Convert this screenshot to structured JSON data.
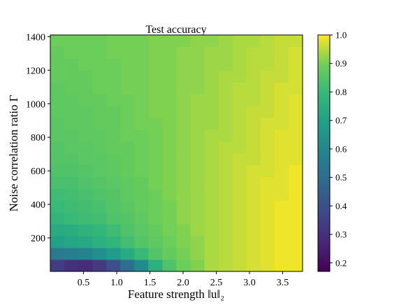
{
  "chart_data": {
    "type": "heatmap",
    "title": "Test accuracy",
    "xlabel": "Feature strength ‖u‖₂",
    "ylabel": "Noise correlation ratio Γ",
    "xlim": [
      0,
      3.8
    ],
    "ylim": [
      0,
      1410
    ],
    "xticks": [
      "0.5",
      "1.0",
      "1.5",
      "2.0",
      "2.5",
      "3.0",
      "3.5"
    ],
    "yticks": [
      "200",
      "400",
      "600",
      "800",
      "1000",
      "1200",
      "1400"
    ],
    "colorbar": {
      "colormap": "viridis",
      "range": [
        0.17,
        1.0
      ],
      "ticks": [
        "0.2",
        "0.3",
        "0.4",
        "0.5",
        "0.6",
        "0.7",
        "0.8",
        "0.9",
        "1.0"
      ]
    },
    "grid": false,
    "columns": 18,
    "rows": 20,
    "values": [
      [
        0.34,
        0.3,
        0.29,
        0.33,
        0.4,
        0.5,
        0.62,
        0.76,
        0.84,
        0.89,
        0.91,
        0.94,
        0.95,
        0.96,
        0.97,
        0.98,
        0.99,
        0.99
      ],
      [
        0.55,
        0.57,
        0.59,
        0.63,
        0.68,
        0.74,
        0.8,
        0.85,
        0.88,
        0.9,
        0.92,
        0.94,
        0.95,
        0.96,
        0.97,
        0.98,
        0.99,
        0.99
      ],
      [
        0.7,
        0.72,
        0.73,
        0.76,
        0.78,
        0.82,
        0.85,
        0.87,
        0.89,
        0.91,
        0.92,
        0.94,
        0.95,
        0.96,
        0.97,
        0.98,
        0.99,
        0.99
      ],
      [
        0.74,
        0.75,
        0.77,
        0.79,
        0.81,
        0.84,
        0.86,
        0.88,
        0.9,
        0.91,
        0.93,
        0.94,
        0.95,
        0.96,
        0.97,
        0.98,
        0.99,
        0.99
      ],
      [
        0.78,
        0.8,
        0.81,
        0.82,
        0.84,
        0.85,
        0.87,
        0.89,
        0.9,
        0.92,
        0.93,
        0.94,
        0.95,
        0.96,
        0.97,
        0.98,
        0.99,
        0.99
      ],
      [
        0.8,
        0.81,
        0.82,
        0.83,
        0.85,
        0.86,
        0.88,
        0.89,
        0.9,
        0.92,
        0.93,
        0.94,
        0.95,
        0.96,
        0.97,
        0.98,
        0.99,
        0.99
      ],
      [
        0.81,
        0.82,
        0.83,
        0.84,
        0.85,
        0.87,
        0.88,
        0.89,
        0.91,
        0.92,
        0.93,
        0.94,
        0.95,
        0.96,
        0.97,
        0.98,
        0.98,
        0.99
      ],
      [
        0.83,
        0.83,
        0.84,
        0.85,
        0.86,
        0.87,
        0.88,
        0.9,
        0.91,
        0.92,
        0.93,
        0.94,
        0.95,
        0.96,
        0.97,
        0.98,
        0.98,
        0.99
      ],
      [
        0.84,
        0.84,
        0.85,
        0.86,
        0.87,
        0.88,
        0.89,
        0.9,
        0.91,
        0.92,
        0.93,
        0.94,
        0.95,
        0.96,
        0.97,
        0.97,
        0.98,
        0.99
      ],
      [
        0.85,
        0.85,
        0.86,
        0.86,
        0.87,
        0.88,
        0.89,
        0.9,
        0.91,
        0.92,
        0.93,
        0.94,
        0.95,
        0.96,
        0.96,
        0.97,
        0.98,
        0.98
      ],
      [
        0.85,
        0.86,
        0.86,
        0.87,
        0.88,
        0.88,
        0.89,
        0.9,
        0.91,
        0.92,
        0.93,
        0.94,
        0.95,
        0.95,
        0.96,
        0.97,
        0.98,
        0.98
      ],
      [
        0.86,
        0.86,
        0.87,
        0.87,
        0.88,
        0.89,
        0.89,
        0.9,
        0.91,
        0.92,
        0.93,
        0.94,
        0.94,
        0.95,
        0.96,
        0.97,
        0.98,
        0.98
      ],
      [
        0.86,
        0.87,
        0.87,
        0.88,
        0.88,
        0.89,
        0.9,
        0.9,
        0.91,
        0.92,
        0.93,
        0.93,
        0.94,
        0.95,
        0.96,
        0.97,
        0.97,
        0.98
      ],
      [
        0.87,
        0.87,
        0.87,
        0.88,
        0.88,
        0.89,
        0.9,
        0.91,
        0.91,
        0.92,
        0.93,
        0.93,
        0.94,
        0.95,
        0.96,
        0.96,
        0.97,
        0.98
      ],
      [
        0.87,
        0.87,
        0.88,
        0.88,
        0.89,
        0.89,
        0.9,
        0.91,
        0.91,
        0.92,
        0.93,
        0.93,
        0.94,
        0.95,
        0.95,
        0.96,
        0.97,
        0.98
      ],
      [
        0.87,
        0.88,
        0.88,
        0.89,
        0.89,
        0.9,
        0.9,
        0.91,
        0.91,
        0.92,
        0.92,
        0.93,
        0.94,
        0.95,
        0.95,
        0.96,
        0.97,
        0.97
      ],
      [
        0.88,
        0.88,
        0.88,
        0.89,
        0.89,
        0.9,
        0.9,
        0.91,
        0.91,
        0.92,
        0.92,
        0.93,
        0.94,
        0.94,
        0.95,
        0.96,
        0.96,
        0.97
      ],
      [
        0.88,
        0.88,
        0.89,
        0.89,
        0.89,
        0.9,
        0.9,
        0.91,
        0.91,
        0.92,
        0.92,
        0.93,
        0.93,
        0.94,
        0.95,
        0.95,
        0.96,
        0.97
      ],
      [
        0.88,
        0.89,
        0.89,
        0.89,
        0.9,
        0.9,
        0.9,
        0.91,
        0.91,
        0.92,
        0.92,
        0.93,
        0.93,
        0.94,
        0.95,
        0.95,
        0.96,
        0.97
      ],
      [
        0.89,
        0.89,
        0.89,
        0.89,
        0.9,
        0.9,
        0.9,
        0.91,
        0.91,
        0.91,
        0.92,
        0.92,
        0.93,
        0.94,
        0.94,
        0.95,
        0.96,
        0.96
      ]
    ]
  }
}
